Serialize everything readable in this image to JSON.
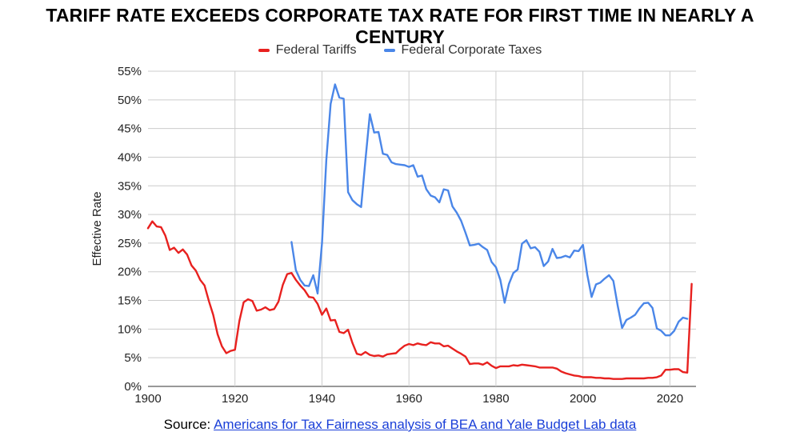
{
  "chart_data": {
    "type": "line",
    "title": "TARIFF RATE EXCEEDS CORPORATE TAX RATE FOR FIRST TIME IN NEARLY A CENTURY",
    "xlabel": "",
    "ylabel": "Effective Rate",
    "xlim": [
      1900,
      2026
    ],
    "ylim": [
      0,
      55
    ],
    "x_ticks": [
      1900,
      1920,
      1940,
      1960,
      1980,
      2000,
      2020
    ],
    "y_ticks": [
      0,
      5,
      10,
      15,
      20,
      25,
      30,
      35,
      40,
      45,
      50,
      55
    ],
    "y_tick_labels": [
      "0%",
      "5%",
      "10%",
      "15%",
      "20%",
      "25%",
      "30%",
      "35%",
      "40%",
      "45%",
      "50%",
      "55%"
    ],
    "grid": true,
    "legend_position": "top-center",
    "series": [
      {
        "name": "Federal Tariffs",
        "color": "#e8211f",
        "points": [
          [
            1900,
            27.6
          ],
          [
            1901,
            28.8
          ],
          [
            1902,
            27.9
          ],
          [
            1903,
            27.8
          ],
          [
            1904,
            26.3
          ],
          [
            1905,
            23.8
          ],
          [
            1906,
            24.2
          ],
          [
            1907,
            23.3
          ],
          [
            1908,
            23.9
          ],
          [
            1909,
            23.0
          ],
          [
            1910,
            21.1
          ],
          [
            1911,
            20.2
          ],
          [
            1912,
            18.6
          ],
          [
            1913,
            17.6
          ],
          [
            1914,
            14.9
          ],
          [
            1915,
            12.5
          ],
          [
            1916,
            9.1
          ],
          [
            1917,
            7.0
          ],
          [
            1918,
            5.8
          ],
          [
            1919,
            6.2
          ],
          [
            1920,
            6.4
          ],
          [
            1921,
            11.4
          ],
          [
            1922,
            14.7
          ],
          [
            1923,
            15.2
          ],
          [
            1924,
            14.9
          ],
          [
            1925,
            13.2
          ],
          [
            1926,
            13.4
          ],
          [
            1927,
            13.8
          ],
          [
            1928,
            13.3
          ],
          [
            1929,
            13.5
          ],
          [
            1930,
            14.8
          ],
          [
            1931,
            17.7
          ],
          [
            1932,
            19.6
          ],
          [
            1933,
            19.8
          ],
          [
            1934,
            18.6
          ],
          [
            1935,
            17.6
          ],
          [
            1936,
            16.8
          ],
          [
            1937,
            15.6
          ],
          [
            1938,
            15.5
          ],
          [
            1939,
            14.4
          ],
          [
            1940,
            12.5
          ],
          [
            1941,
            13.6
          ],
          [
            1942,
            11.5
          ],
          [
            1943,
            11.6
          ],
          [
            1944,
            9.5
          ],
          [
            1945,
            9.3
          ],
          [
            1946,
            9.9
          ],
          [
            1947,
            7.6
          ],
          [
            1948,
            5.7
          ],
          [
            1949,
            5.5
          ],
          [
            1950,
            6.0
          ],
          [
            1951,
            5.5
          ],
          [
            1952,
            5.3
          ],
          [
            1953,
            5.4
          ],
          [
            1954,
            5.2
          ],
          [
            1955,
            5.6
          ],
          [
            1956,
            5.7
          ],
          [
            1957,
            5.8
          ],
          [
            1958,
            6.5
          ],
          [
            1959,
            7.1
          ],
          [
            1960,
            7.4
          ],
          [
            1961,
            7.2
          ],
          [
            1962,
            7.5
          ],
          [
            1963,
            7.3
          ],
          [
            1964,
            7.2
          ],
          [
            1965,
            7.7
          ],
          [
            1966,
            7.5
          ],
          [
            1967,
            7.5
          ],
          [
            1968,
            7.0
          ],
          [
            1969,
            7.1
          ],
          [
            1970,
            6.6
          ],
          [
            1971,
            6.1
          ],
          [
            1972,
            5.7
          ],
          [
            1973,
            5.2
          ],
          [
            1974,
            3.9
          ],
          [
            1975,
            4.0
          ],
          [
            1976,
            4.0
          ],
          [
            1977,
            3.8
          ],
          [
            1978,
            4.2
          ],
          [
            1979,
            3.6
          ],
          [
            1980,
            3.2
          ],
          [
            1981,
            3.5
          ],
          [
            1982,
            3.5
          ],
          [
            1983,
            3.5
          ],
          [
            1984,
            3.7
          ],
          [
            1985,
            3.6
          ],
          [
            1986,
            3.8
          ],
          [
            1987,
            3.7
          ],
          [
            1988,
            3.6
          ],
          [
            1989,
            3.5
          ],
          [
            1990,
            3.3
          ],
          [
            1991,
            3.3
          ],
          [
            1992,
            3.3
          ],
          [
            1993,
            3.3
          ],
          [
            1994,
            3.1
          ],
          [
            1995,
            2.6
          ],
          [
            1996,
            2.3
          ],
          [
            1997,
            2.1
          ],
          [
            1998,
            1.9
          ],
          [
            1999,
            1.8
          ],
          [
            2000,
            1.6
          ],
          [
            2001,
            1.6
          ],
          [
            2002,
            1.6
          ],
          [
            2003,
            1.5
          ],
          [
            2004,
            1.5
          ],
          [
            2005,
            1.4
          ],
          [
            2006,
            1.4
          ],
          [
            2007,
            1.3
          ],
          [
            2008,
            1.3
          ],
          [
            2009,
            1.3
          ],
          [
            2010,
            1.4
          ],
          [
            2011,
            1.4
          ],
          [
            2012,
            1.4
          ],
          [
            2013,
            1.4
          ],
          [
            2014,
            1.4
          ],
          [
            2015,
            1.5
          ],
          [
            2016,
            1.5
          ],
          [
            2017,
            1.6
          ],
          [
            2018,
            1.9
          ],
          [
            2019,
            2.9
          ],
          [
            2020,
            2.9
          ],
          [
            2021,
            3.0
          ],
          [
            2022,
            3.0
          ],
          [
            2023,
            2.5
          ],
          [
            2024,
            2.4
          ],
          [
            2025,
            17.9
          ]
        ]
      },
      {
        "name": "Federal Corporate Taxes",
        "color": "#4a86e8",
        "points": [
          [
            1933,
            25.2
          ],
          [
            1934,
            20.3
          ],
          [
            1935,
            18.6
          ],
          [
            1936,
            17.6
          ],
          [
            1937,
            17.5
          ],
          [
            1938,
            19.4
          ],
          [
            1939,
            16.2
          ],
          [
            1940,
            25.0
          ],
          [
            1941,
            39.5
          ],
          [
            1942,
            49.3
          ],
          [
            1943,
            52.7
          ],
          [
            1944,
            50.4
          ],
          [
            1945,
            50.2
          ],
          [
            1946,
            33.9
          ],
          [
            1947,
            32.5
          ],
          [
            1948,
            31.8
          ],
          [
            1949,
            31.3
          ],
          [
            1950,
            39.5
          ],
          [
            1951,
            47.5
          ],
          [
            1952,
            44.3
          ],
          [
            1953,
            44.4
          ],
          [
            1954,
            40.6
          ],
          [
            1955,
            40.4
          ],
          [
            1956,
            39.1
          ],
          [
            1957,
            38.8
          ],
          [
            1958,
            38.7
          ],
          [
            1959,
            38.6
          ],
          [
            1960,
            38.3
          ],
          [
            1961,
            38.6
          ],
          [
            1962,
            36.6
          ],
          [
            1963,
            36.8
          ],
          [
            1964,
            34.4
          ],
          [
            1965,
            33.3
          ],
          [
            1966,
            33.0
          ],
          [
            1967,
            32.1
          ],
          [
            1968,
            34.4
          ],
          [
            1969,
            34.2
          ],
          [
            1970,
            31.4
          ],
          [
            1971,
            30.3
          ],
          [
            1972,
            28.9
          ],
          [
            1973,
            26.8
          ],
          [
            1974,
            24.6
          ],
          [
            1975,
            24.7
          ],
          [
            1976,
            24.9
          ],
          [
            1977,
            24.3
          ],
          [
            1978,
            23.8
          ],
          [
            1979,
            21.7
          ],
          [
            1980,
            20.8
          ],
          [
            1981,
            18.6
          ],
          [
            1982,
            14.6
          ],
          [
            1983,
            17.9
          ],
          [
            1984,
            19.8
          ],
          [
            1985,
            20.4
          ],
          [
            1986,
            24.9
          ],
          [
            1987,
            25.5
          ],
          [
            1988,
            24.1
          ],
          [
            1989,
            24.3
          ],
          [
            1990,
            23.5
          ],
          [
            1991,
            21.0
          ],
          [
            1992,
            21.8
          ],
          [
            1993,
            24.0
          ],
          [
            1994,
            22.4
          ],
          [
            1995,
            22.5
          ],
          [
            1996,
            22.8
          ],
          [
            1997,
            22.5
          ],
          [
            1998,
            23.7
          ],
          [
            1999,
            23.6
          ],
          [
            2000,
            24.7
          ],
          [
            2001,
            19.5
          ],
          [
            2002,
            15.6
          ],
          [
            2003,
            17.8
          ],
          [
            2004,
            18.1
          ],
          [
            2005,
            18.8
          ],
          [
            2006,
            19.4
          ],
          [
            2007,
            18.4
          ],
          [
            2008,
            14.1
          ],
          [
            2009,
            10.2
          ],
          [
            2010,
            11.6
          ],
          [
            2011,
            12.0
          ],
          [
            2012,
            12.5
          ],
          [
            2013,
            13.6
          ],
          [
            2014,
            14.5
          ],
          [
            2015,
            14.6
          ],
          [
            2016,
            13.7
          ],
          [
            2017,
            10.1
          ],
          [
            2018,
            9.7
          ],
          [
            2019,
            8.9
          ],
          [
            2020,
            8.9
          ],
          [
            2021,
            9.7
          ],
          [
            2022,
            11.3
          ],
          [
            2023,
            12.0
          ],
          [
            2024,
            11.8
          ]
        ]
      }
    ]
  },
  "legend": {
    "tariffs_label": "Federal Tariffs",
    "corporate_label": "Federal Corporate Taxes",
    "tariffs_color": "#e8211f",
    "corporate_color": "#4a86e8"
  },
  "source": {
    "prefix": "Source:",
    "link_text": "Americans for Tax Fairness analysis of BEA and Yale Budget Lab data"
  }
}
